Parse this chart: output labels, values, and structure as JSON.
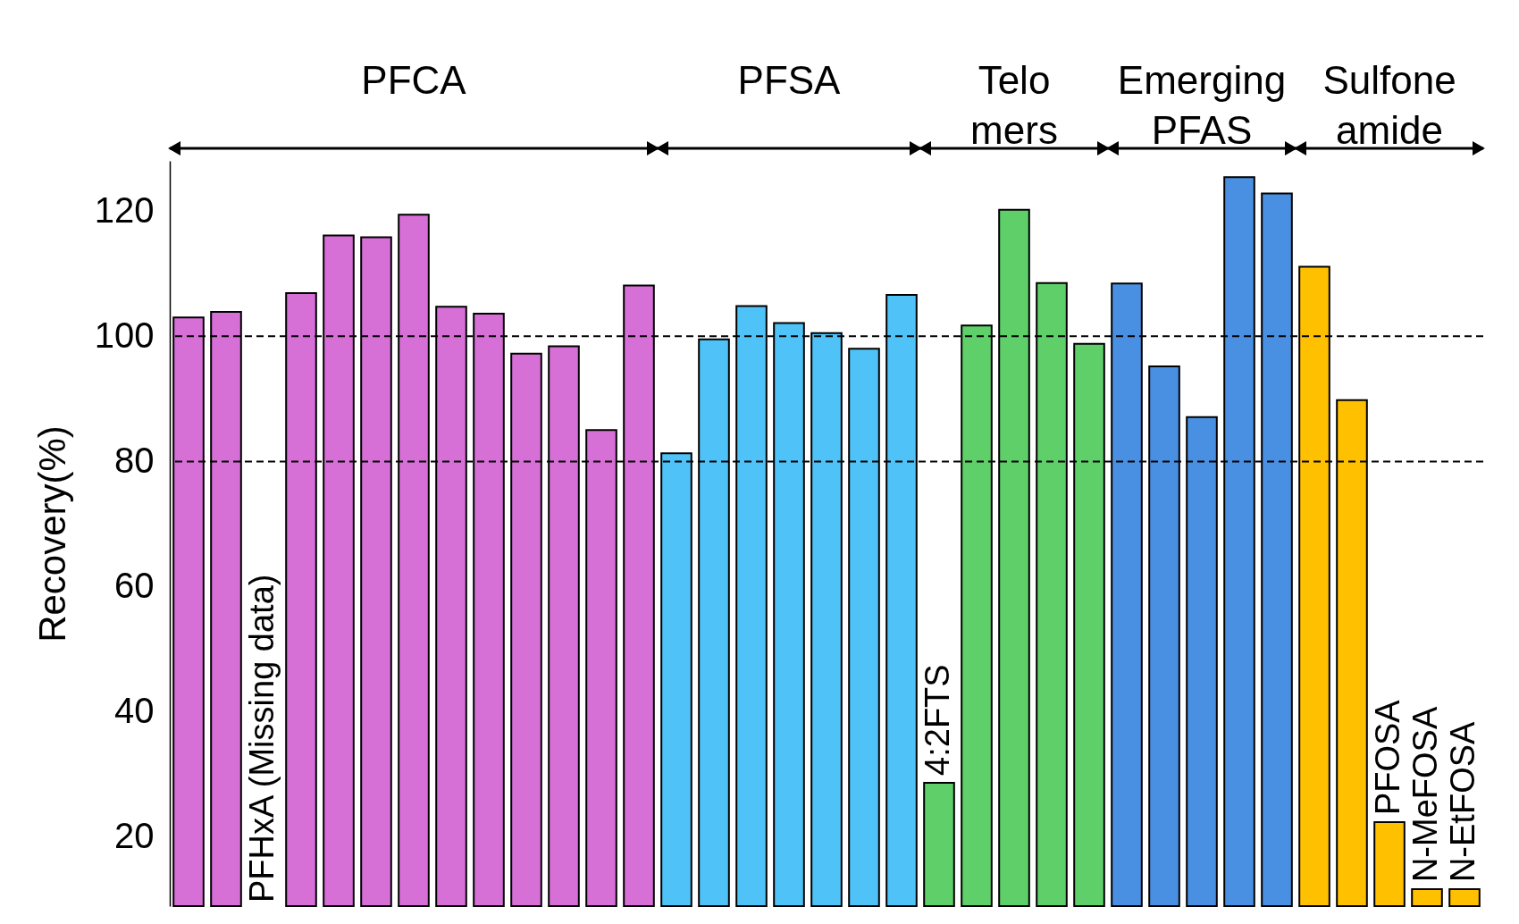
{
  "chart_data": {
    "type": "bar",
    "ylabel": "Recovery(%)",
    "categories": [
      null,
      null,
      "PFHxA  (Missing data)",
      null,
      null,
      null,
      null,
      null,
      null,
      null,
      null,
      null,
      null,
      null,
      null,
      null,
      null,
      null,
      null,
      null,
      "4:2FTS",
      null,
      null,
      null,
      null,
      null,
      null,
      null,
      null,
      null,
      null,
      null,
      "PFOSA",
      "N-MeFOSA",
      "N-EtFOSA"
    ],
    "values": [
      103.0,
      103.9,
      null,
      106.9,
      116.1,
      115.8,
      119.4,
      104.7,
      103.6,
      97.2,
      98.4,
      85.0,
      108.1,
      81.3,
      99.5,
      104.8,
      102.1,
      100.5,
      98.0,
      106.6,
      28.7,
      101.7,
      120.2,
      108.5,
      98.8,
      108.4,
      95.2,
      87.1,
      125.4,
      122.8,
      111.1,
      89.8,
      22.4,
      11.7,
      11.7
    ],
    "colors": [
      "#d66fd6",
      "#d66fd6",
      "#d66fd6",
      "#d66fd6",
      "#d66fd6",
      "#d66fd6",
      "#d66fd6",
      "#d66fd6",
      "#d66fd6",
      "#d66fd6",
      "#d66fd6",
      "#d66fd6",
      "#d66fd6",
      "#4fc3f7",
      "#4fc3f7",
      "#4fc3f7",
      "#4fc3f7",
      "#4fc3f7",
      "#4fc3f7",
      "#4fc3f7",
      "#5fcf6a",
      "#5fcf6a",
      "#5fcf6a",
      "#5fcf6a",
      "#5fcf6a",
      "#4a90e2",
      "#4a90e2",
      "#4a90e2",
      "#4a90e2",
      "#4a90e2",
      "#ffc000",
      "#ffc000",
      "#ffc000",
      "#ffc000",
      "#ffc000"
    ],
    "ylim": [
      9,
      128
    ],
    "yticks": [
      20,
      40,
      60,
      80,
      100,
      120
    ],
    "ref_lines": [
      {
        "axis": "y",
        "value": 100,
        "line_style": "dashed",
        "color": "#000000"
      },
      {
        "axis": "y",
        "value": 80,
        "line_style": "dashed",
        "color": "#000000"
      }
    ],
    "annotations": [
      "PFCA",
      "PFSA",
      "Telo\nmers",
      "Emerging\nPFAS",
      "Sulfone\namide"
    ]
  }
}
